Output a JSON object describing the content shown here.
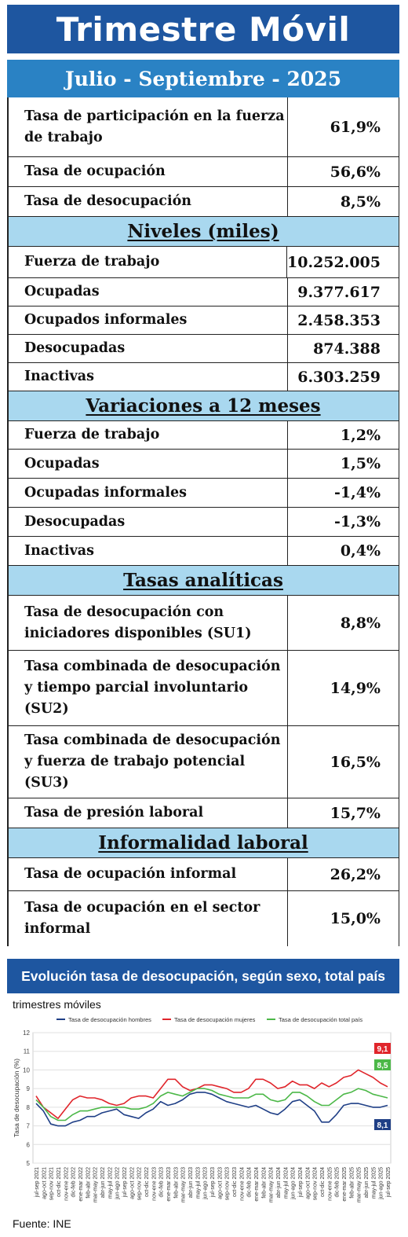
{
  "header": {
    "title": "Trimestre Móvil",
    "period": "Julio - Septiembre - 2025"
  },
  "rates": [
    {
      "label": "Tasa de participación en la fuerza de trabajo",
      "value": "61,9%"
    },
    {
      "label": "Tasa de ocupación",
      "value": "56,6%"
    },
    {
      "label": "Tasa de desocupación",
      "value": "8,5%"
    }
  ],
  "levels": {
    "title": "Niveles  (miles)",
    "rows": [
      {
        "label": "Fuerza de trabajo",
        "value": "10.252.005"
      },
      {
        "label": "Ocupadas",
        "value": "9.377.617"
      },
      {
        "label": "Ocupados informales",
        "value": "2.458.353"
      },
      {
        "label": "Desocupadas",
        "value": "874.388"
      },
      {
        "label": "Inactivas",
        "value": "6.303.259"
      }
    ]
  },
  "variations": {
    "title": "Variaciones a 12 meses",
    "rows": [
      {
        "label": "Fuerza de trabajo",
        "value": "1,2%"
      },
      {
        "label": "Ocupadas",
        "value": "1,5%"
      },
      {
        "label": "Ocupadas informales",
        "value": "-1,4%"
      },
      {
        "label": "Desocupadas",
        "value": "-1,3%"
      },
      {
        "label": "Inactivas",
        "value": "0,4%"
      }
    ]
  },
  "analytical": {
    "title": "Tasas  analíticas",
    "rows": [
      {
        "label": "Tasa de desocupación con iniciadores disponibles (SU1)",
        "value": "8,8%"
      },
      {
        "label": "Tasa combinada de desocupación y tiempo parcial involuntario (SU2)",
        "value": "14,9%"
      },
      {
        "label": "Tasa combinada de desocupación y fuerza de trabajo potencial (SU3)",
        "value": "16,5%"
      },
      {
        "label": "Tasa de presión laboral",
        "value": "15,7%"
      }
    ]
  },
  "informality": {
    "title": "Informalidad  laboral",
    "rows": [
      {
        "label": "Tasa de ocupación informal",
        "value": "26,2%"
      },
      {
        "label": "Tasa de ocupación en el sector informal",
        "value": "15,0%"
      }
    ]
  },
  "chart_banner": "Evolución tasa de desocupación, según sexo, total país",
  "chart_subtitle": "trimestres móviles",
  "source": "Fuente: INE",
  "colors": {
    "title_bg": "#1e56a0",
    "period_bg": "#2a82c4",
    "section_bg": "#a9d8ef",
    "men": "#1f3f86",
    "women": "#e0252b",
    "total": "#4cb848"
  },
  "chart_data": {
    "type": "line",
    "ylabel": "Tasa de desocupación (%)",
    "ylim": [
      5,
      12
    ],
    "yticks": [
      5,
      6,
      7,
      8,
      9,
      10,
      11,
      12
    ],
    "grid": true,
    "legend_position": "top",
    "x": [
      "jul-sep 2021",
      "ago-oct 2021",
      "sep-nov 2021",
      "oct-dic 2021",
      "nov-ene 2022",
      "dic-feb 2022",
      "ene-mar 2022",
      "feb-abr 2022",
      "mar-may 2022",
      "abr-jun 2022",
      "may-jul 2022",
      "jun-ago 2022",
      "jul-sep 2022",
      "ago-oct 2022",
      "sep-nov 2022",
      "oct-dic 2022",
      "nov-ene 2023",
      "dic-feb 2023",
      "ene-mar 2023",
      "feb-abr 2023",
      "mar-may 2023",
      "abr-jun 2023",
      "may-jul 2023",
      "jun-ago 2023",
      "jul-sep 2023",
      "ago-oct 2023",
      "sep-nov 2023",
      "oct-dic 2023",
      "nov-ene 2024",
      "dic-feb 2024",
      "ene-mar 2024",
      "feb-abr 2024",
      "mar-may 2024",
      "abr-jun 2024",
      "may-jul 2024",
      "jun-ago 2024",
      "jul-sep 2024",
      "ago-oct 2024",
      "sep-nov 2024",
      "oct-dic 2024",
      "nov-ene 2025",
      "dic-feb 2025",
      "ene-mar 2025",
      "feb-abr 2025",
      "mar-may 2025",
      "abr-jun 2025",
      "may-jul 2025",
      "jun-ago 2025",
      "jul-sep 2025"
    ],
    "series": [
      {
        "name": "Tasa de desocupación hombres",
        "color": "#1f3f86",
        "last_label": "8,1",
        "values": [
          8.2,
          7.8,
          7.1,
          7.0,
          7.0,
          7.2,
          7.3,
          7.5,
          7.5,
          7.7,
          7.8,
          7.9,
          7.6,
          7.5,
          7.4,
          7.7,
          7.9,
          8.3,
          8.1,
          8.2,
          8.4,
          8.7,
          8.8,
          8.8,
          8.7,
          8.5,
          8.3,
          8.2,
          8.1,
          8.0,
          8.1,
          7.9,
          7.7,
          7.6,
          7.9,
          8.3,
          8.4,
          8.1,
          7.8,
          7.2,
          7.2,
          7.6,
          8.1,
          8.2,
          8.2,
          8.1,
          8.0,
          8.0,
          8.1
        ]
      },
      {
        "name": "Tasa de desocupación mujeres",
        "color": "#e0252b",
        "last_label": "9,1",
        "values": [
          8.6,
          8.0,
          7.7,
          7.4,
          7.9,
          8.4,
          8.6,
          8.5,
          8.5,
          8.4,
          8.2,
          8.1,
          8.2,
          8.5,
          8.6,
          8.6,
          8.5,
          9.0,
          9.5,
          9.5,
          9.1,
          8.9,
          9.0,
          9.2,
          9.2,
          9.1,
          9.0,
          8.8,
          8.8,
          9.0,
          9.5,
          9.5,
          9.3,
          9.0,
          9.1,
          9.4,
          9.2,
          9.2,
          9.0,
          9.3,
          9.1,
          9.3,
          9.6,
          9.7,
          10.0,
          9.8,
          9.6,
          9.3,
          9.1
        ]
      },
      {
        "name": "Tasa de desocupación total país",
        "color": "#4cb848",
        "last_label": "8,5",
        "values": [
          8.4,
          8.0,
          7.5,
          7.3,
          7.3,
          7.6,
          7.8,
          7.8,
          7.9,
          8.0,
          8.0,
          8.0,
          8.0,
          7.9,
          7.9,
          8.0,
          8.2,
          8.6,
          8.8,
          8.7,
          8.6,
          8.8,
          9.0,
          9.0,
          8.9,
          8.7,
          8.6,
          8.5,
          8.5,
          8.5,
          8.7,
          8.7,
          8.4,
          8.3,
          8.4,
          8.8,
          8.8,
          8.6,
          8.3,
          8.1,
          8.1,
          8.4,
          8.7,
          8.8,
          9.0,
          8.9,
          8.7,
          8.6,
          8.5
        ]
      }
    ]
  }
}
